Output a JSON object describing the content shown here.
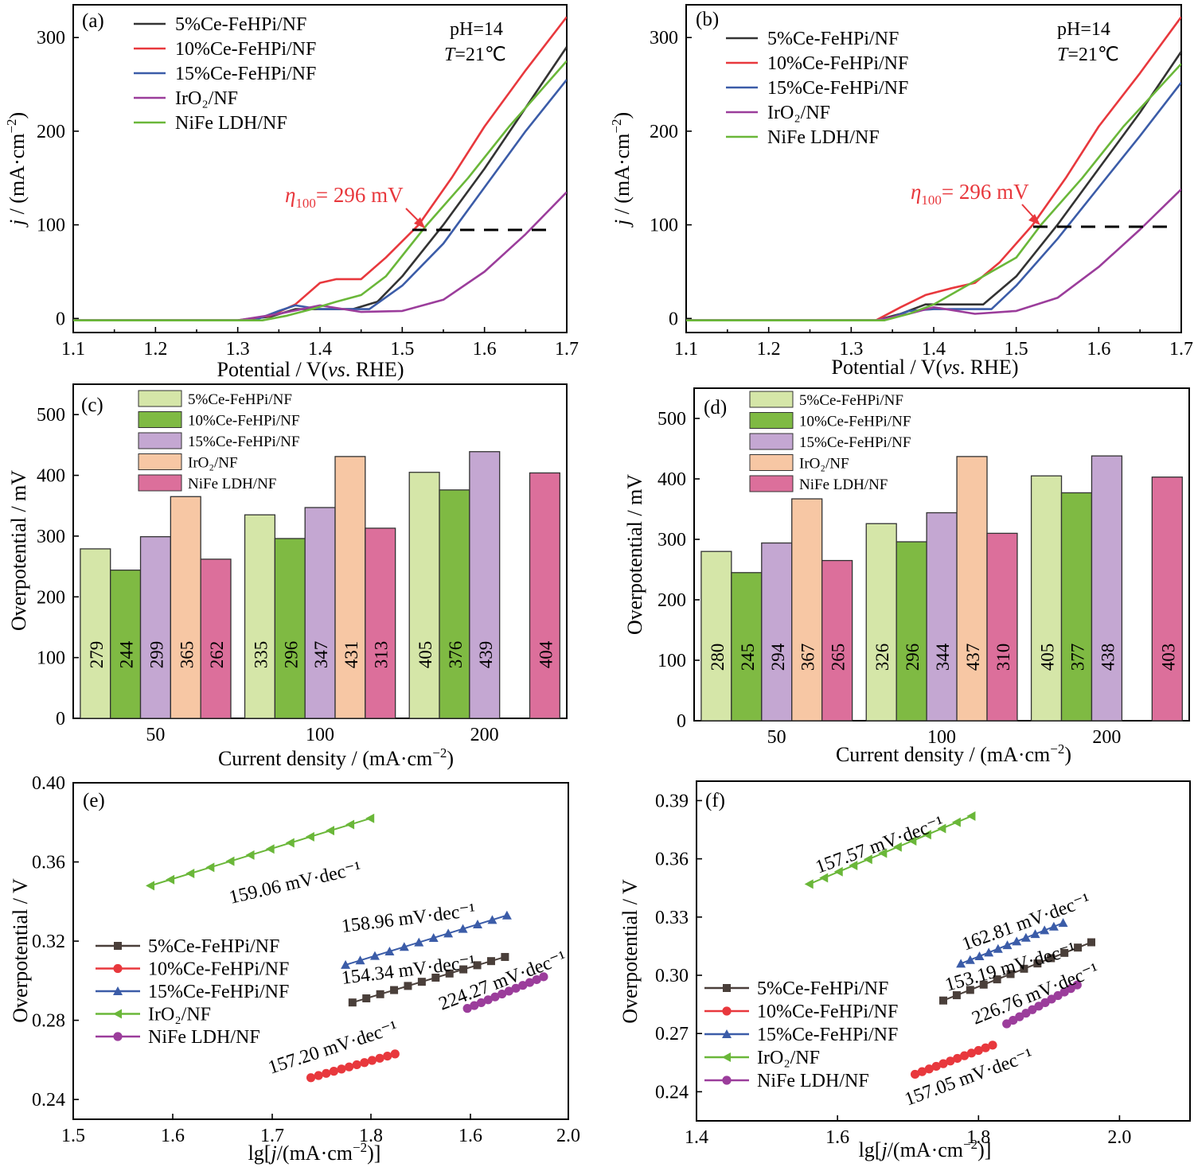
{
  "chart_data": [
    {
      "panel": "(a)",
      "type": "line",
      "xlabel": "Potential / V(vs. RHE)",
      "ylabel": "j / (mA·cm⁻²)",
      "xlim": [
        1.1,
        1.7
      ],
      "ylim": [
        -15,
        335
      ],
      "xticks": [
        "1.1",
        "1.2",
        "1.3",
        "1.4",
        "1.5",
        "1.6",
        "1.7"
      ],
      "yticks": [
        "0",
        "100",
        "200",
        "300"
      ],
      "conditions": [
        "pH=14",
        "T=21℃"
      ],
      "annotation": "η100= 296 mV",
      "series": [
        {
          "name": "5%Ce-FeHPi/NF",
          "color": "#333333",
          "x": [
            1.1,
            1.3,
            1.34,
            1.37,
            1.4,
            1.44,
            1.47,
            1.5,
            1.55,
            1.6,
            1.65,
            1.7
          ],
          "y": [
            -2,
            -2,
            2,
            10,
            10,
            10,
            18,
            45,
            100,
            160,
            225,
            290
          ]
        },
        {
          "name": "10%Ce-FeHPi/NF",
          "color": "#e8383d",
          "x": [
            1.1,
            1.3,
            1.34,
            1.37,
            1.4,
            1.42,
            1.45,
            1.48,
            1.52,
            1.56,
            1.6,
            1.65,
            1.7
          ],
          "y": [
            -2,
            -2,
            3,
            15,
            38,
            42,
            42,
            65,
            100,
            150,
            205,
            265,
            322
          ]
        },
        {
          "name": "15%Ce-FeHPi/NF",
          "color": "#3b5ca8",
          "x": [
            1.1,
            1.32,
            1.35,
            1.37,
            1.4,
            1.46,
            1.5,
            1.55,
            1.6,
            1.65,
            1.7
          ],
          "y": [
            -2,
            -2,
            8,
            14,
            10,
            10,
            35,
            80,
            140,
            200,
            255
          ]
        },
        {
          "name": "IrO₂/NF",
          "color": "#9b3d9b",
          "x": [
            1.1,
            1.3,
            1.35,
            1.4,
            1.45,
            1.5,
            1.55,
            1.6,
            1.65,
            1.7
          ],
          "y": [
            -2,
            -2,
            5,
            14,
            7,
            8,
            20,
            50,
            90,
            135
          ]
        },
        {
          "name": "NiFe LDH/NF",
          "color": "#6ab739",
          "x": [
            1.1,
            1.33,
            1.36,
            1.39,
            1.42,
            1.45,
            1.48,
            1.53,
            1.58,
            1.63,
            1.7
          ],
          "y": [
            -2,
            -2,
            3,
            10,
            18,
            25,
            45,
            100,
            150,
            205,
            275
          ]
        }
      ]
    },
    {
      "panel": "(b)",
      "type": "line",
      "xlabel": "Potential / V(vs. RHE)",
      "ylabel": "j / (mA·cm⁻²)",
      "xlim": [
        1.1,
        1.7
      ],
      "ylim": [
        -15,
        335
      ],
      "xticks": [
        "1.1",
        "1.2",
        "1.3",
        "1.4",
        "1.5",
        "1.6",
        "1.7"
      ],
      "yticks": [
        "0",
        "100",
        "200",
        "300"
      ],
      "conditions": [
        "pH=14",
        "T=21℃"
      ],
      "annotation": "η100= 296 mV",
      "series": [
        {
          "name": "5%Ce-FeHPi/NF",
          "color": "#333333",
          "x": [
            1.1,
            1.33,
            1.36,
            1.39,
            1.42,
            1.46,
            1.5,
            1.55,
            1.6,
            1.65,
            1.7
          ],
          "y": [
            -2,
            -2,
            5,
            15,
            15,
            15,
            45,
            100,
            160,
            220,
            285
          ]
        },
        {
          "name": "10%Ce-FeHPi/NF",
          "color": "#e8383d",
          "x": [
            1.1,
            1.33,
            1.36,
            1.39,
            1.42,
            1.45,
            1.48,
            1.52,
            1.56,
            1.6,
            1.65,
            1.7
          ],
          "y": [
            -2,
            -2,
            12,
            25,
            32,
            38,
            60,
            100,
            150,
            205,
            262,
            322
          ]
        },
        {
          "name": "15%Ce-FeHPi/NF",
          "color": "#3b5ca8",
          "x": [
            1.1,
            1.34,
            1.37,
            1.4,
            1.47,
            1.5,
            1.55,
            1.6,
            1.65,
            1.7
          ],
          "y": [
            -2,
            -2,
            8,
            10,
            10,
            35,
            85,
            140,
            195,
            252
          ]
        },
        {
          "name": "IrO₂/NF",
          "color": "#9b3d9b",
          "x": [
            1.1,
            1.33,
            1.37,
            1.4,
            1.45,
            1.5,
            1.55,
            1.6,
            1.65,
            1.7
          ],
          "y": [
            -2,
            -2,
            5,
            12,
            5,
            8,
            22,
            55,
            95,
            138
          ]
        },
        {
          "name": "NiFe LDH/NF",
          "color": "#6ab739",
          "x": [
            1.1,
            1.34,
            1.37,
            1.4,
            1.43,
            1.46,
            1.5,
            1.53,
            1.58,
            1.63,
            1.7
          ],
          "y": [
            -2,
            -2,
            5,
            15,
            30,
            45,
            65,
            100,
            150,
            205,
            272
          ]
        }
      ]
    },
    {
      "panel": "(c)",
      "type": "bar",
      "xlabel": "Current density / (mA·cm⁻²)",
      "ylabel": "Overpotential / mV",
      "ylim": [
        0,
        550
      ],
      "yticks": [
        "0",
        "100",
        "200",
        "300",
        "400",
        "500"
      ],
      "categories": [
        "50",
        "100",
        "200"
      ],
      "series": [
        {
          "name": "5%Ce-FeHPi/NF",
          "color": "#d5e6a8",
          "values": [
            279,
            335,
            405
          ]
        },
        {
          "name": "10%Ce-FeHPi/NF",
          "color": "#7fba43",
          "values": [
            244,
            296,
            376
          ]
        },
        {
          "name": "15%Ce-FeHPi/NF",
          "color": "#c4a7d2",
          "values": [
            299,
            347,
            439
          ]
        },
        {
          "name": "IrO₂/NF",
          "color": "#f7c7a4",
          "values": [
            365,
            431,
            null
          ]
        },
        {
          "name": "NiFe LDH/NF",
          "color": "#dc6f9b",
          "values": [
            262,
            313,
            404
          ]
        }
      ]
    },
    {
      "panel": "(d)",
      "type": "bar",
      "xlabel": "Current density / (mA·cm⁻²)",
      "ylabel": "Overpotential / mV",
      "ylim": [
        0,
        550
      ],
      "yticks": [
        "0",
        "100",
        "200",
        "300",
        "400",
        "500"
      ],
      "categories": [
        "50",
        "100",
        "200"
      ],
      "series": [
        {
          "name": "5%Ce-FeHPi/NF",
          "color": "#d5e6a8",
          "values": [
            280,
            326,
            405
          ]
        },
        {
          "name": "10%Ce-FeHPi/NF",
          "color": "#7fba43",
          "values": [
            245,
            296,
            377
          ]
        },
        {
          "name": "15%Ce-FeHPi/NF",
          "color": "#c4a7d2",
          "values": [
            294,
            344,
            438
          ]
        },
        {
          "name": "IrO₂/NF",
          "color": "#f7c7a4",
          "values": [
            367,
            437,
            null
          ]
        },
        {
          "name": "NiFe LDH/NF",
          "color": "#dc6f9b",
          "values": [
            265,
            310,
            403
          ]
        }
      ]
    },
    {
      "panel": "(e)",
      "type": "scatter",
      "xlabel": "lg[j/(mA·cm⁻²)]",
      "ylabel": "Overpotential / V",
      "xlim": [
        1.5,
        2.0
      ],
      "ylim": [
        0.23,
        0.4
      ],
      "xticks": [
        "1.5",
        "1.6",
        "1.7",
        "1.8",
        "1.6",
        "1.8",
        "2.0"
      ],
      "yticks": [
        "0.24",
        "0.28",
        "0.32",
        "0.36",
        "0.40"
      ],
      "series": [
        {
          "name": "5%Ce-FeHPi/NF",
          "color": "#4a3f3a",
          "marker": "square",
          "x0": 1.782,
          "x1": 1.936,
          "y0": 0.289,
          "y1": 0.312,
          "n": 12
        },
        {
          "name": "10%Ce-FeHPi/NF",
          "color": "#e8383d",
          "marker": "circle",
          "x0": 1.74,
          "x1": 1.825,
          "y0": 0.251,
          "y1": 0.263,
          "n": 12
        },
        {
          "name": "15%Ce-FeHPi/NF",
          "color": "#3b5ca8",
          "marker": "triangle-up",
          "x0": 1.775,
          "x1": 1.938,
          "y0": 0.308,
          "y1": 0.333,
          "n": 12
        },
        {
          "name": "IrO₂/NF",
          "color": "#6ab739",
          "marker": "triangle-left",
          "x0": 1.578,
          "x1": 1.8,
          "y0": 0.348,
          "y1": 0.382,
          "n": 12
        },
        {
          "name": "NiFe LDH/NF",
          "color": "#9b3d9b",
          "marker": "circle",
          "x0": 1.898,
          "x1": 1.975,
          "y0": 0.286,
          "y1": 0.302,
          "n": 12
        }
      ],
      "annotations": [
        {
          "text": "159.06 mV·dec⁻¹",
          "color": "#6ab739"
        },
        {
          "text": "158.96 mV·dec⁻¹",
          "color": "#3b5ca8"
        },
        {
          "text": "154.34 mV·dec⁻¹",
          "color": "#000000"
        },
        {
          "text": "224.27 mV·dec⁻¹",
          "color": "#9b3d9b"
        },
        {
          "text": "157.20 mV·dec⁻¹",
          "color": "#e8383d"
        }
      ]
    },
    {
      "panel": "(f)",
      "type": "scatter",
      "xlabel": "lg[j/(mA·cm⁻²)]",
      "ylabel": "Overpotential / V",
      "xlim": [
        1.4,
        2.1
      ],
      "ylim": [
        0.225,
        0.4
      ],
      "xticks": [
        "1.4",
        "1.6",
        "1.8",
        "2.0"
      ],
      "yticks": [
        "0.24",
        "0.27",
        "0.30",
        "0.33",
        "0.36",
        "0.39"
      ],
      "series": [
        {
          "name": "5%Ce-FeHPi/NF",
          "color": "#4a3f3a",
          "marker": "square",
          "x0": 1.75,
          "x1": 1.96,
          "y0": 0.287,
          "y1": 0.317,
          "n": 12
        },
        {
          "name": "10%Ce-FeHPi/NF",
          "color": "#e8383d",
          "marker": "circle",
          "x0": 1.71,
          "x1": 1.82,
          "y0": 0.249,
          "y1": 0.264,
          "n": 12
        },
        {
          "name": "15%Ce-FeHPi/NF",
          "color": "#3b5ca8",
          "marker": "triangle-up",
          "x0": 1.775,
          "x1": 1.92,
          "y0": 0.306,
          "y1": 0.327,
          "n": 12
        },
        {
          "name": "IrO₂/NF",
          "color": "#6ab739",
          "marker": "triangle-left",
          "x0": 1.56,
          "x1": 1.79,
          "y0": 0.347,
          "y1": 0.382,
          "n": 12
        },
        {
          "name": "NiFe LDH/NF",
          "color": "#9b3d9b",
          "marker": "circle",
          "x0": 1.84,
          "x1": 1.94,
          "y0": 0.275,
          "y1": 0.295,
          "n": 12
        }
      ],
      "annotations": [
        {
          "text": "157.57 mV·dec⁻¹",
          "color": "#6ab739"
        },
        {
          "text": "162.81 mV·dec⁻¹",
          "color": "#3b5ca8"
        },
        {
          "text": "153.19 mV·dec⁻¹",
          "color": "#000000"
        },
        {
          "text": "226.76 mV·dec⁻¹",
          "color": "#9b3d9b"
        },
        {
          "text": "157.05 mV·dec⁻¹",
          "color": "#e8383d"
        }
      ]
    }
  ]
}
